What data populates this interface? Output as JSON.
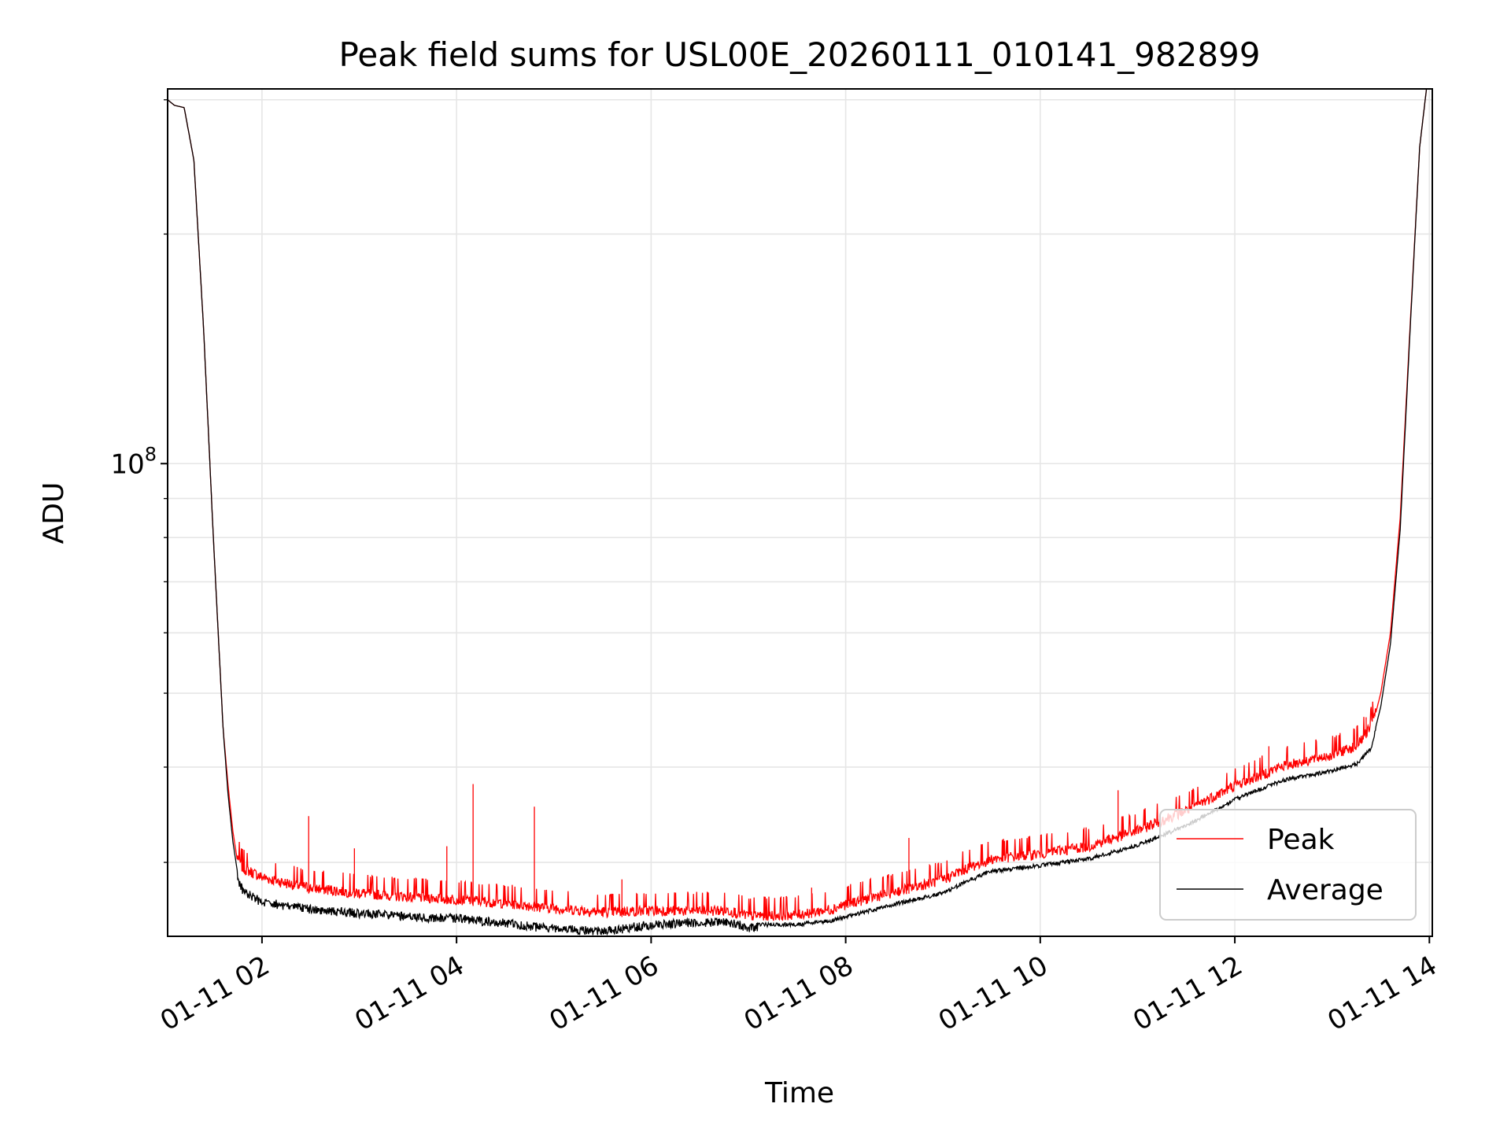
{
  "chart_data": {
    "type": "line",
    "title": "Peak field sums for USL00E_20260111_010141_982899",
    "xlabel": "Time",
    "ylabel": "ADU",
    "yscale": "log",
    "grid": true,
    "legend_position": "bottom-right",
    "xlim_hours": [
      1.03,
      14.03
    ],
    "ylim": [
      24000000,
      310000000
    ],
    "xticks": [
      {
        "hour": 2,
        "label": "01-11 02"
      },
      {
        "hour": 4,
        "label": "01-11 04"
      },
      {
        "hour": 6,
        "label": "01-11 06"
      },
      {
        "hour": 8,
        "label": "01-11 08"
      },
      {
        "hour": 10,
        "label": "01-11 10"
      },
      {
        "hour": 12,
        "label": "01-11 12"
      },
      {
        "hour": 14,
        "label": "01-11 14"
      }
    ],
    "yticks_major": [
      {
        "value": 100000000,
        "label_base": "10",
        "label_exp": "8"
      }
    ],
    "yticks_minor": [
      30000000,
      40000000,
      50000000,
      60000000,
      70000000,
      80000000,
      90000000,
      200000000,
      300000000
    ],
    "x_hours": [
      1.03,
      1.1,
      1.2,
      1.3,
      1.4,
      1.5,
      1.6,
      1.65,
      1.7,
      1.75,
      1.8,
      1.9,
      2.0,
      2.25,
      2.5,
      3.0,
      3.5,
      4.0,
      4.5,
      5.0,
      5.5,
      6.0,
      6.5,
      6.8,
      7.0,
      7.5,
      7.85,
      8.0,
      8.5,
      9.0,
      9.25,
      9.5,
      10.0,
      10.5,
      11.0,
      11.5,
      12.0,
      12.5,
      13.0,
      13.25,
      13.4,
      13.5,
      13.6,
      13.7,
      13.8,
      13.9,
      13.97
    ],
    "series": [
      {
        "name": "Peak",
        "color": "#ff0000",
        "values": [
          300000000,
          295000000,
          293000000,
          250000000,
          150000000,
          80000000,
          45000000,
          38000000,
          33000000,
          30000000,
          29000000,
          28600000,
          28200000,
          27700000,
          27300000,
          26900000,
          26600000,
          26400000,
          26100000,
          25700000,
          25400000,
          25500000,
          25500000,
          25500000,
          25100000,
          25200000,
          25600000,
          26000000,
          27000000,
          28000000,
          29000000,
          29800000,
          30300000,
          31000000,
          32500000,
          34500000,
          37200000,
          39500000,
          40800000,
          42000000,
          44500000,
          50000000,
          60000000,
          85000000,
          150000000,
          260000000,
          310000000
        ],
        "spikes": [
          {
            "hour": 2.48,
            "value": 34500000
          },
          {
            "hour": 2.95,
            "value": 31300000
          },
          {
            "hour": 3.9,
            "value": 31500000
          },
          {
            "hour": 4.17,
            "value": 38000000
          },
          {
            "hour": 4.8,
            "value": 35500000
          },
          {
            "hour": 5.7,
            "value": 28500000
          },
          {
            "hour": 7.65,
            "value": 27800000
          },
          {
            "hour": 8.65,
            "value": 32300000
          },
          {
            "hour": 10.8,
            "value": 37300000
          },
          {
            "hour": 12.35,
            "value": 42600000
          },
          {
            "hour": 13.35,
            "value": 46500000
          }
        ]
      },
      {
        "name": "Average",
        "color": "#000000",
        "values": [
          300000000,
          295000000,
          293000000,
          250000000,
          150000000,
          80000000,
          45000000,
          37000000,
          32000000,
          29000000,
          28000000,
          27400000,
          27000000,
          26700000,
          26400000,
          26100000,
          25800000,
          25700000,
          25300000,
          24900000,
          24700000,
          25200000,
          25400000,
          25400000,
          25000000,
          25000000,
          25300000,
          25600000,
          26600000,
          27500000,
          28500000,
          29400000,
          29900000,
          30500000,
          31800000,
          33700000,
          36500000,
          38700000,
          39800000,
          40600000,
          42600000,
          48000000,
          58000000,
          82000000,
          148000000,
          260000000,
          310000000
        ]
      }
    ]
  }
}
